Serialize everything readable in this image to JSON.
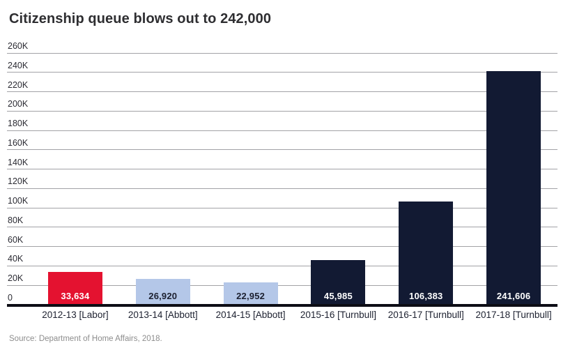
{
  "title": "Citizenship queue blows out to 242,000",
  "source": "Source: Department of Home Affairs, 2018.",
  "colors": {
    "labor_red": "#e41230",
    "abbott_light_blue": "#b4c7e8",
    "turnbull_navy": "#121a33",
    "gridline": "#a2a2a6",
    "axis_line": "#0d0d15",
    "title_text": "#2e2e31",
    "tick_text": "#2b2b33",
    "x_label_text": "#1d2130",
    "source_text": "#8d8d8d",
    "value_label_light": "#ffffff",
    "value_label_dark": "#1c2030"
  },
  "chart_data": {
    "type": "bar",
    "title": "Citizenship queue blows out to 242,000",
    "categories": [
      "2012-13 [Labor]",
      "2013-14 [Abbott]",
      "2014-15 [Abbott]",
      "2015-16 [Turnbull]",
      "2016-17 [Turnbull]",
      "2017-18 [Turnbull]"
    ],
    "values": [
      33634,
      26920,
      22952,
      45985,
      106383,
      241606
    ],
    "value_labels": [
      "33,634",
      "26,920",
      "22,952",
      "45,985",
      "106,383",
      "241,606"
    ],
    "bar_colors": [
      "#e41230",
      "#b4c7e8",
      "#b4c7e8",
      "#121a33",
      "#121a33",
      "#121a33"
    ],
    "value_label_colors": [
      "#ffffff",
      "#1c2030",
      "#1c2030",
      "#ffffff",
      "#ffffff",
      "#ffffff"
    ],
    "xlabel": "",
    "ylabel": "",
    "ylim": [
      0,
      260000
    ],
    "ytick_step": 20000,
    "ytick_labels": [
      "0",
      "20K",
      "40K",
      "60K",
      "80K",
      "100K",
      "120K",
      "140K",
      "160K",
      "180K",
      "200K",
      "220K",
      "240K",
      "260K"
    ],
    "grid": true,
    "legend": false,
    "value_labels_position": "inside-bottom"
  }
}
